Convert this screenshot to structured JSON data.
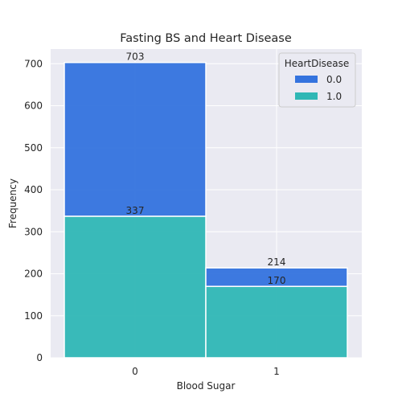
{
  "chart_data": {
    "type": "bar",
    "title": "Fasting BS and Heart Disease",
    "xlabel": "Blood Sugar",
    "ylabel": "Frequency",
    "categories": [
      "0",
      "1"
    ],
    "yticks": [
      "0",
      "100",
      "200",
      "300",
      "400",
      "500",
      "600",
      "700"
    ],
    "ylim": [
      0,
      735
    ],
    "grid": true,
    "stacking": "stacked",
    "series": [
      {
        "name": "1.0",
        "values": [
          337,
          170
        ],
        "labels": [
          "337",
          "170"
        ],
        "color": "#2fb7b5"
      },
      {
        "name": "0.0",
        "values": [
          366,
          44
        ],
        "totals": [
          703,
          214
        ],
        "labels": [
          "703",
          "214"
        ],
        "color": "#3473de"
      }
    ],
    "legend": {
      "title": "HeartDisease",
      "entries": [
        "0.0",
        "1.0"
      ],
      "placement": "top-right"
    }
  },
  "colors": {
    "plot_background": "#eaeaf2",
    "grid": "#ffffff",
    "series_0": "#3473de",
    "series_1": "#2fb7b5"
  }
}
